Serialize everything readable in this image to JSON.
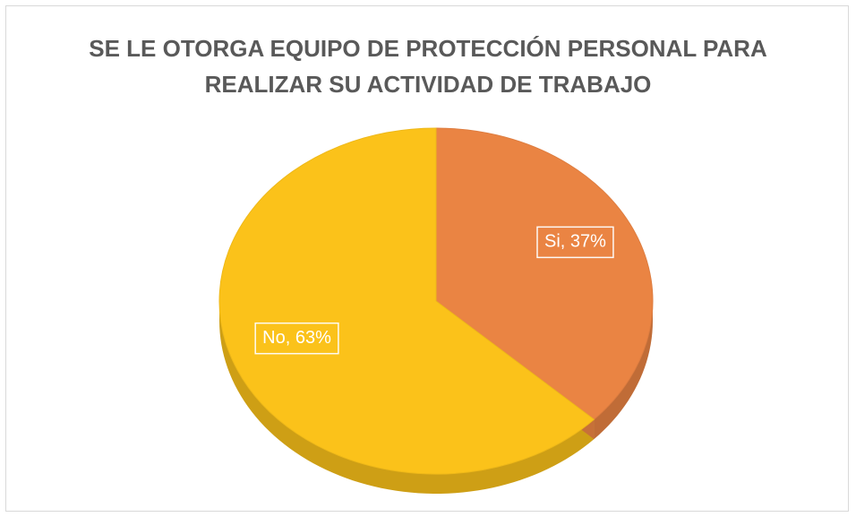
{
  "chart_data": {
    "type": "pie",
    "title": "SE LE OTORGA EQUIPO DE PROTECCIÓN PERSONAL PARA REALIZAR SU ACTIVIDAD DE TRABAJO",
    "categories": [
      "Si",
      "No"
    ],
    "values": [
      37,
      63
    ],
    "value_labels": [
      "Si, 37%",
      "No, 63%"
    ],
    "colors": [
      "#ea8443",
      "#fbc21a"
    ]
  }
}
